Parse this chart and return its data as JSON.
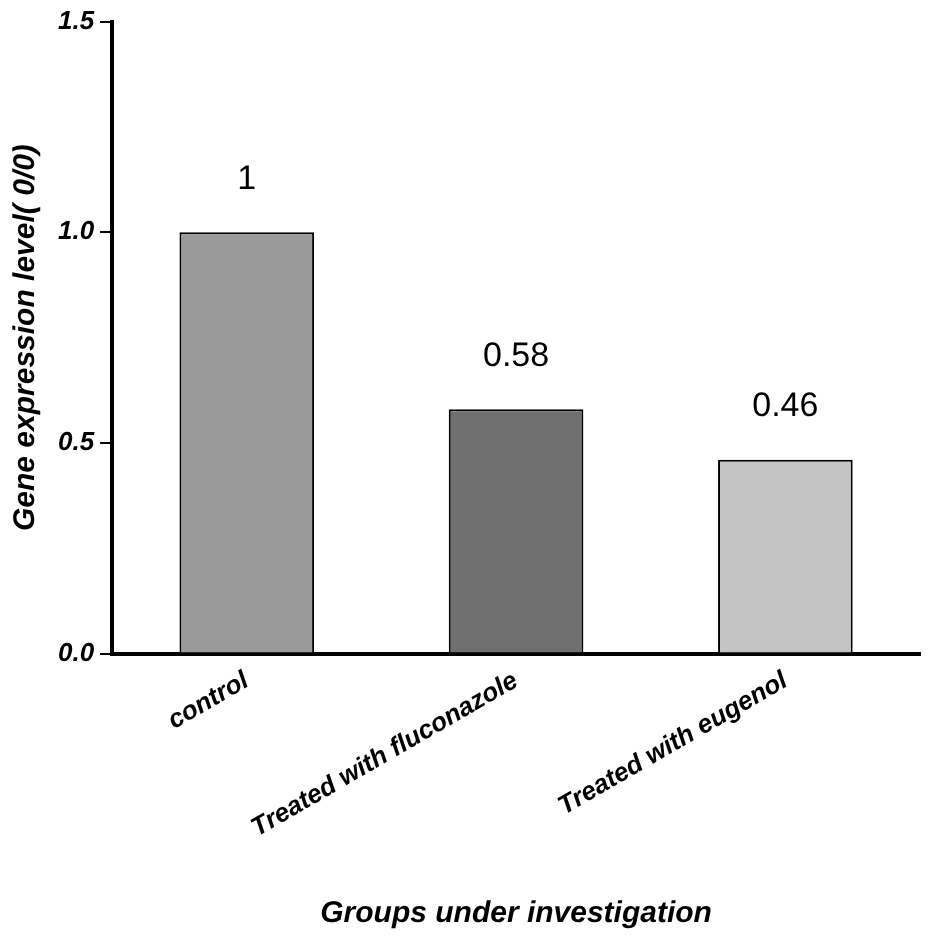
{
  "chart_data": {
    "type": "bar",
    "xlabel": "Groups under investigation",
    "ylabel": "Gene expression level( 0/0)",
    "categories": [
      "control",
      "Treated with fluconazole",
      "Treated with eugenol"
    ],
    "values": [
      1,
      0.58,
      0.46
    ],
    "colors": [
      "#9a9a9a",
      "#707070",
      "#c4c4c4"
    ],
    "ylim": [
      0,
      1.5
    ],
    "yticks": [
      {
        "value": 0,
        "label": "0.0"
      },
      {
        "value": 0.5,
        "label": "0.5"
      },
      {
        "value": 1,
        "label": "1.0"
      },
      {
        "value": 1.5,
        "label": "1.5"
      }
    ],
    "grid": false,
    "legend": false,
    "data_labels": true
  }
}
